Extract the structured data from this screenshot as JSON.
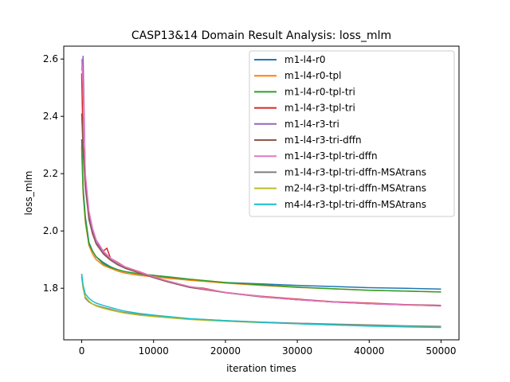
{
  "chart_data": {
    "type": "line",
    "title": "CASP13&14 Domain Result Analysis: loss_mlm",
    "xlabel": "iteration times",
    "ylabel": "loss_mlm",
    "xlim": [
      -2500,
      52500
    ],
    "ylim": [
      1.62,
      2.645
    ],
    "x_ticks": [
      0,
      10000,
      20000,
      30000,
      40000,
      50000
    ],
    "x_tick_labels": [
      "0",
      "10000",
      "20000",
      "30000",
      "40000",
      "50000"
    ],
    "y_ticks": [
      1.8,
      2.0,
      2.2,
      2.4,
      2.6
    ],
    "y_tick_labels": [
      "1.8",
      "2.0",
      "2.2",
      "2.4",
      "2.6"
    ],
    "grid": false,
    "legend_position": "upper right",
    "series": [
      {
        "name": "m1-l4-r0",
        "color": "#1f77b4",
        "x": [
          0,
          200,
          500,
          1000,
          1500,
          2000,
          3000,
          4000,
          5000,
          6000,
          8000,
          10000,
          12000,
          15000,
          20000,
          25000,
          30000,
          35000,
          40000,
          45000,
          50000
        ],
        "y": [
          2.32,
          2.15,
          2.05,
          1.96,
          1.93,
          1.91,
          1.89,
          1.875,
          1.865,
          1.858,
          1.85,
          1.845,
          1.838,
          1.83,
          1.82,
          1.815,
          1.81,
          1.806,
          1.802,
          1.8,
          1.797
        ]
      },
      {
        "name": "m1-l4-r0-tpl",
        "color": "#ff7f0e",
        "x": [
          0,
          200,
          500,
          1000,
          1500,
          2000,
          3000,
          4000,
          5000,
          6000,
          8000,
          10000,
          12000,
          15000,
          20000,
          25000,
          30000,
          35000,
          40000,
          45000,
          50000
        ],
        "y": [
          2.29,
          2.13,
          2.03,
          1.95,
          1.92,
          1.9,
          1.88,
          1.87,
          1.86,
          1.853,
          1.845,
          1.84,
          1.835,
          1.828,
          1.818,
          1.81,
          1.803,
          1.798,
          1.793,
          1.79,
          1.787
        ]
      },
      {
        "name": "m1-l4-r0-tpl-tri",
        "color": "#2ca02c",
        "x": [
          0,
          200,
          500,
          1000,
          1500,
          2000,
          3000,
          4000,
          5000,
          6000,
          8000,
          10000,
          12000,
          15000,
          20000,
          25000,
          30000,
          35000,
          40000,
          45000,
          50000
        ],
        "y": [
          2.3,
          2.14,
          2.04,
          1.955,
          1.93,
          1.91,
          1.885,
          1.873,
          1.865,
          1.858,
          1.85,
          1.845,
          1.84,
          1.832,
          1.82,
          1.812,
          1.804,
          1.798,
          1.793,
          1.79,
          1.787
        ]
      },
      {
        "name": "m1-l4-r3-tpl-tri",
        "color": "#d62728",
        "x": [
          0,
          200,
          500,
          1000,
          1500,
          2000,
          3000,
          3500,
          4000,
          5000,
          6000,
          8000,
          10000,
          12000,
          15000,
          17000,
          20000,
          25000,
          30000,
          35000,
          40000,
          45000,
          50000
        ],
        "y": [
          2.55,
          2.3,
          2.16,
          2.05,
          1.99,
          1.96,
          1.93,
          1.94,
          1.905,
          1.89,
          1.875,
          1.858,
          1.84,
          1.825,
          1.805,
          1.8,
          1.785,
          1.772,
          1.762,
          1.753,
          1.748,
          1.743,
          1.74
        ]
      },
      {
        "name": "m1-l4-r3-tri",
        "color": "#9467bd",
        "x": [
          0,
          200,
          500,
          1000,
          1500,
          2000,
          3000,
          4000,
          5000,
          6000,
          8000,
          10000,
          12000,
          15000,
          20000,
          25000,
          30000,
          35000,
          40000,
          45000,
          50000
        ],
        "y": [
          2.56,
          2.61,
          2.18,
          2.06,
          2.0,
          1.96,
          1.925,
          1.9,
          1.885,
          1.872,
          1.855,
          1.838,
          1.823,
          1.805,
          1.785,
          1.77,
          1.76,
          1.752,
          1.746,
          1.742,
          1.738
        ]
      },
      {
        "name": "m1-l4-r3-tri-dffn",
        "color": "#8c564b",
        "x": [
          0,
          200,
          500,
          1000,
          1500,
          2000,
          3000,
          4000,
          5000,
          6000,
          8000,
          10000,
          12000,
          15000,
          20000,
          25000,
          30000,
          35000,
          40000,
          45000,
          50000
        ],
        "y": [
          2.41,
          2.28,
          2.15,
          2.04,
          1.99,
          1.955,
          1.92,
          1.898,
          1.882,
          1.87,
          1.853,
          1.837,
          1.822,
          1.803,
          1.785,
          1.77,
          1.76,
          1.752,
          1.746,
          1.742,
          1.74
        ]
      },
      {
        "name": "m1-l4-r3-tpl-tri-dffn",
        "color": "#e377c2",
        "x": [
          0,
          200,
          500,
          1000,
          1500,
          2000,
          3000,
          4000,
          5000,
          6000,
          8000,
          10000,
          12000,
          15000,
          20000,
          25000,
          30000,
          35000,
          40000,
          45000,
          50000
        ],
        "y": [
          2.6,
          2.5,
          2.2,
          2.07,
          2.01,
          1.97,
          1.93,
          1.905,
          1.888,
          1.875,
          1.857,
          1.84,
          1.825,
          1.806,
          1.786,
          1.771,
          1.76,
          1.752,
          1.746,
          1.742,
          1.738
        ]
      },
      {
        "name": "m1-l4-r3-tpl-tri-dffn-MSAtrans",
        "color": "#7f7f7f",
        "x": [
          0,
          200,
          500,
          1000,
          1500,
          2000,
          3000,
          4000,
          5000,
          6000,
          8000,
          10000,
          12000,
          15000,
          20000,
          25000,
          30000,
          35000,
          40000,
          45000,
          50000
        ],
        "y": [
          1.84,
          1.8,
          1.765,
          1.752,
          1.745,
          1.74,
          1.733,
          1.727,
          1.72,
          1.715,
          1.708,
          1.703,
          1.698,
          1.693,
          1.687,
          1.682,
          1.678,
          1.675,
          1.672,
          1.669,
          1.667
        ]
      },
      {
        "name": "m2-l4-r3-tpl-tri-dffn-MSAtrans",
        "color": "#bcbd22",
        "x": [
          0,
          200,
          500,
          1000,
          1500,
          2000,
          3000,
          4000,
          5000,
          6000,
          8000,
          10000,
          12000,
          15000,
          20000,
          25000,
          30000,
          35000,
          40000,
          45000,
          50000
        ],
        "y": [
          1.85,
          1.8,
          1.77,
          1.755,
          1.745,
          1.738,
          1.73,
          1.724,
          1.718,
          1.713,
          1.706,
          1.701,
          1.697,
          1.691,
          1.685,
          1.68,
          1.676,
          1.672,
          1.669,
          1.666,
          1.664
        ]
      },
      {
        "name": "m4-l4-r3-tpl-tri-dffn-MSAtrans",
        "color": "#17becf",
        "x": [
          0,
          200,
          500,
          1000,
          1500,
          2000,
          3000,
          4000,
          5000,
          6000,
          8000,
          10000,
          12000,
          15000,
          20000,
          25000,
          30000,
          35000,
          40000,
          45000,
          50000
        ],
        "y": [
          1.85,
          1.81,
          1.78,
          1.765,
          1.755,
          1.748,
          1.74,
          1.733,
          1.726,
          1.72,
          1.712,
          1.706,
          1.701,
          1.694,
          1.687,
          1.681,
          1.676,
          1.672,
          1.668,
          1.665,
          1.663
        ]
      }
    ]
  }
}
